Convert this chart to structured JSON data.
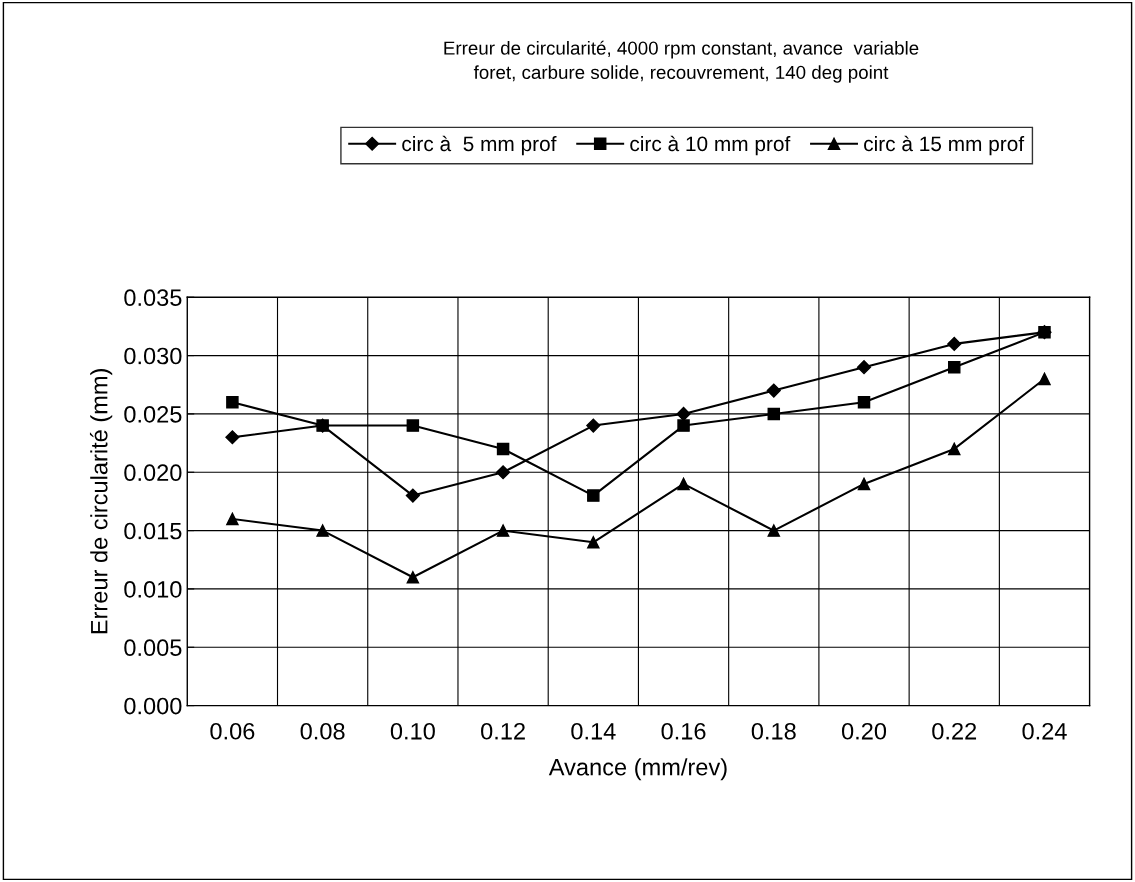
{
  "chart_data": {
    "type": "line",
    "title": "Erreur de circularité, 4000 rpm constant, avance  variable\nforet, carbure solide, recouvrement, 140 deg point",
    "xlabel": "Avance (mm/rev)",
    "ylabel": "Erreur de circularité (mm)",
    "categories": [
      "0.06",
      "0.08",
      "0.10",
      "0.12",
      "0.14",
      "0.16",
      "0.18",
      "0.20",
      "0.22",
      "0.24"
    ],
    "series": [
      {
        "name": "circ à  5 mm prof",
        "color": "#000000",
        "marker": "diamond",
        "values": [
          0.023,
          0.024,
          0.018,
          0.02,
          0.024,
          0.025,
          0.027,
          0.029,
          0.031,
          0.032
        ]
      },
      {
        "name": "circ à 10 mm prof",
        "color": "#000000",
        "marker": "square",
        "values": [
          0.026,
          0.024,
          0.024,
          0.022,
          0.018,
          0.024,
          0.025,
          0.026,
          0.029,
          0.032
        ]
      },
      {
        "name": "circ à 15 mm prof",
        "color": "#000000",
        "marker": "triangle",
        "values": [
          0.016,
          0.015,
          0.011,
          0.015,
          0.014,
          0.019,
          0.015,
          0.019,
          0.022,
          0.028
        ]
      }
    ],
    "ylim": [
      0,
      0.035
    ],
    "yticks": [
      {
        "value": 0,
        "label": "0.000"
      },
      {
        "value": 0.005,
        "label": "0.005"
      },
      {
        "value": 0.01,
        "label": "0.010"
      },
      {
        "value": 0.015,
        "label": "0.015"
      },
      {
        "value": 0.02,
        "label": "0.020"
      },
      {
        "value": 0.025,
        "label": "0.025"
      },
      {
        "value": 0.03,
        "label": "0.030"
      },
      {
        "value": 0.035,
        "label": "0.035"
      }
    ],
    "grid": true,
    "legend": "top",
    "line_style": "solid"
  }
}
